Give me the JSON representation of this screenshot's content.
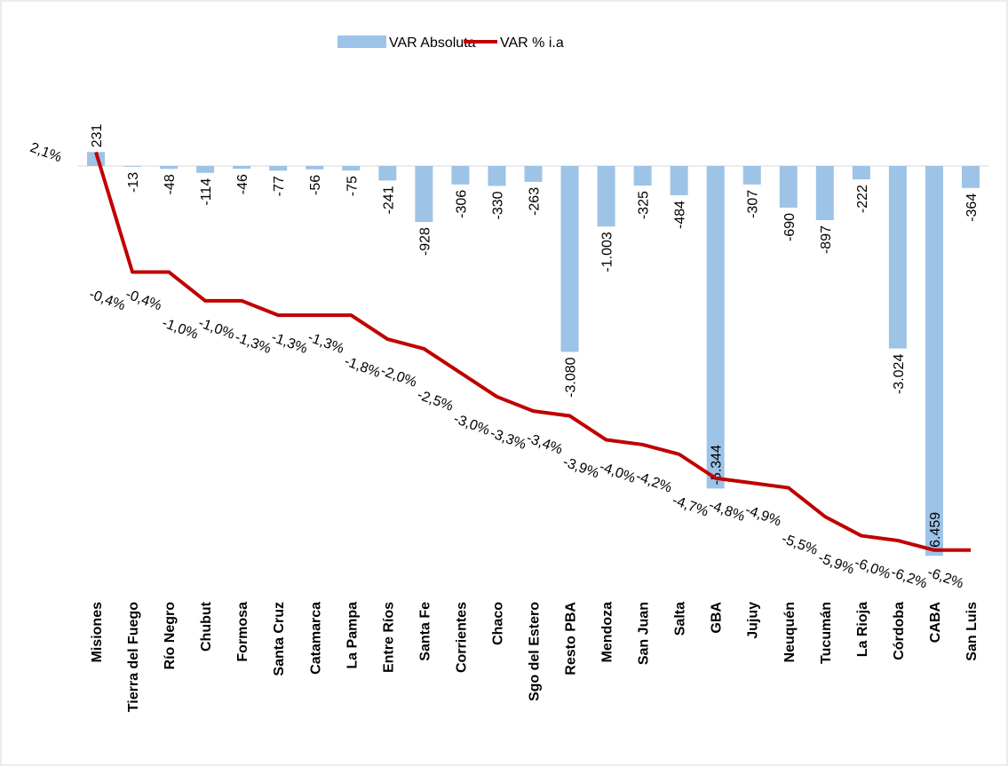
{
  "chart_data": {
    "type": "bar-line",
    "categories": [
      "Misiones",
      "Tierra del Fuego",
      "Río Negro",
      "Chubut",
      "Formosa",
      "Santa Cruz",
      "Catamarca",
      "La Pampa",
      "Entre Ríos",
      "Santa Fe",
      "Corrientes",
      "Chaco",
      "Sgo del Estero",
      "Resto PBA",
      "Mendoza",
      "San Juan",
      "Salta",
      "GBA",
      "Jujuy",
      "Neuquén",
      "Tucumán",
      "La Rioja",
      "Córdoba",
      "CABA",
      "San Luis"
    ],
    "series": [
      {
        "name": "VAR Absoluta",
        "type": "bar",
        "color": "#9dc3e6",
        "values": [
          231,
          -13,
          -48,
          -114,
          -46,
          -77,
          -56,
          -75,
          -241,
          -928,
          -306,
          -330,
          -263,
          -3080,
          -1003,
          -325,
          -484,
          -5344,
          -307,
          -690,
          -897,
          -222,
          -3024,
          -6459,
          -364
        ],
        "value_labels": [
          "231",
          "-13",
          "-48",
          "-114",
          "-46",
          "-77",
          "-56",
          "-75",
          "-241",
          "-928",
          "-306",
          "-330",
          "-263",
          "-3.080",
          "-1.003",
          "-325",
          "-484",
          "-5.344",
          "-307",
          "-690",
          "-897",
          "-222",
          "-3.024",
          "-6.459",
          "-364"
        ]
      },
      {
        "name": "VAR % i.a",
        "type": "line",
        "axis": "y2",
        "color": "#c00000",
        "values": [
          2.1,
          -0.4,
          -0.4,
          -1.0,
          -1.0,
          -1.3,
          -1.3,
          -1.3,
          -1.8,
          -2.0,
          -2.5,
          -3.0,
          -3.3,
          -3.4,
          -3.9,
          -4.0,
          -4.2,
          -4.7,
          -4.8,
          -4.9,
          -5.5,
          -5.9,
          -6.0,
          -6.2,
          -6.2
        ],
        "value_labels": [
          "2,1%",
          "-0,4%",
          "-0,4%",
          "-1,0%",
          "-1,0%",
          "-1,3%",
          "-1,3%",
          "-1,3%",
          "-1,8%",
          "-2,0%",
          "-2,5%",
          "-3,0%",
          "-3,3%",
          "-3,4%",
          "-3,9%",
          "-4,0%",
          "-4,2%",
          "-4,7%",
          "-4,8%",
          "-4,9%",
          "-5,5%",
          "-5,9%",
          "-6,0%",
          "-6,2%",
          "-6,2%"
        ]
      }
    ],
    "ylim": [
      -7000,
      1500
    ],
    "y2lim": [
      -7.0,
      3.7
    ],
    "legend": "top"
  }
}
